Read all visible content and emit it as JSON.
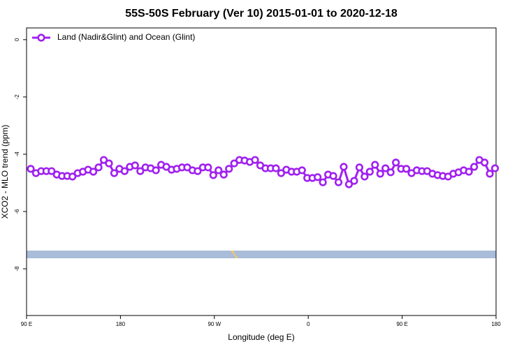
{
  "chart_data": {
    "type": "line",
    "title": "55S-50S February (Ver 10)   2015-01-01 to 2020-12-18",
    "xlabel": "Longitude (deg E)",
    "ylabel": "XCO2 - MLO trend (ppm)",
    "legend_position": "top-left",
    "xlim": [
      90,
      540
    ],
    "ylim": [
      -9.63,
      0.41
    ],
    "xticks": [
      {
        "value": 90,
        "label": "90 E"
      },
      {
        "value": 180,
        "label": "180"
      },
      {
        "value": 270,
        "label": "90 W"
      },
      {
        "value": 360,
        "label": "0"
      },
      {
        "value": 450,
        "label": "90 E"
      },
      {
        "value": 540,
        "label": "180"
      }
    ],
    "yticks": [
      0,
      -2,
      -4,
      -6,
      -8
    ],
    "x": [
      94,
      99,
      104,
      109,
      114,
      119,
      124,
      129,
      134,
      139,
      144,
      149,
      154,
      159,
      164,
      169,
      174,
      179,
      184,
      189,
      194,
      199,
      204,
      209,
      214,
      219,
      224,
      229,
      234,
      239,
      244,
      249,
      254,
      259,
      264,
      269,
      274,
      279,
      284,
      289,
      294,
      299,
      304,
      309,
      314,
      319,
      324,
      329,
      334,
      339,
      344,
      349,
      354,
      359,
      364,
      369,
      374,
      379,
      384,
      389,
      394,
      399,
      404,
      409,
      414,
      419,
      424,
      429,
      434,
      439,
      444,
      449,
      454,
      459,
      464,
      469,
      474,
      479,
      484,
      489,
      494,
      499,
      504,
      509,
      514,
      519,
      524,
      529,
      534,
      539
    ],
    "series": [
      {
        "name": "Land (Nadir&Glint) and Ocean (Glint)",
        "color": "#a020f0",
        "values": [
          -4.51,
          -4.66,
          -4.59,
          -4.59,
          -4.59,
          -4.71,
          -4.76,
          -4.76,
          -4.78,
          -4.66,
          -4.61,
          -4.54,
          -4.61,
          -4.46,
          -4.2,
          -4.32,
          -4.66,
          -4.51,
          -4.59,
          -4.44,
          -4.39,
          -4.59,
          -4.46,
          -4.49,
          -4.56,
          -4.37,
          -4.44,
          -4.54,
          -4.51,
          -4.46,
          -4.46,
          -4.56,
          -4.59,
          -4.46,
          -4.46,
          -4.73,
          -4.56,
          -4.71,
          -4.51,
          -4.32,
          -4.2,
          -4.22,
          -4.27,
          -4.2,
          -4.39,
          -4.49,
          -4.49,
          -4.49,
          -4.66,
          -4.54,
          -4.61,
          -4.61,
          -4.56,
          -4.83,
          -4.83,
          -4.8,
          -4.98,
          -4.71,
          -4.76,
          -4.98,
          -4.44,
          -5.05,
          -4.93,
          -4.46,
          -4.78,
          -4.61,
          -4.37,
          -4.68,
          -4.49,
          -4.63,
          -4.29,
          -4.51,
          -4.51,
          -4.66,
          -4.56,
          -4.59,
          -4.59,
          -4.68,
          -4.73,
          -4.76,
          -4.78,
          -4.68,
          -4.63,
          -4.56,
          -4.61,
          -4.44,
          -4.2,
          -4.29,
          -4.68,
          -4.49
        ]
      }
    ]
  }
}
